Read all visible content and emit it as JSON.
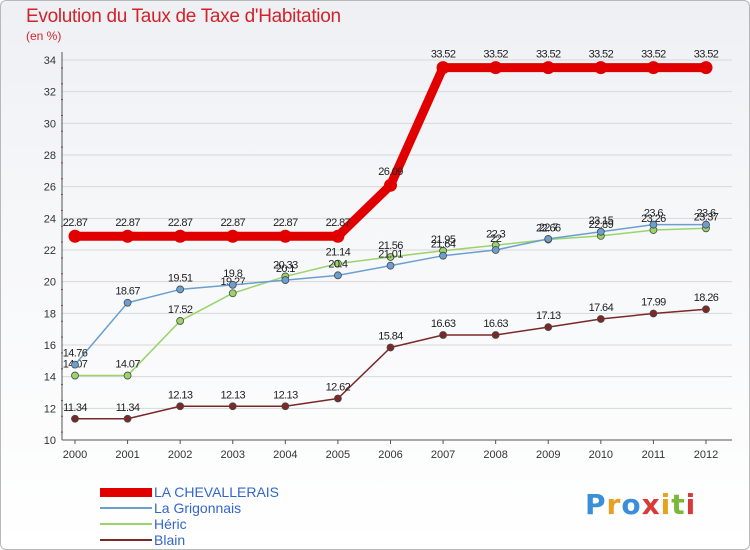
{
  "header": {
    "title": "Evolution du Taux de Taxe d'Habitation",
    "subtitle": "(en %)"
  },
  "logo": {
    "text": "Proxiti"
  },
  "chart_data": {
    "type": "line",
    "title": "Evolution du Taux de Taxe d'Habitation",
    "ylabel": "(en %)",
    "xlabel": "",
    "x": [
      "2000",
      "2001",
      "2002",
      "2003",
      "2004",
      "2005",
      "2006",
      "2007",
      "2008",
      "2009",
      "2010",
      "2011",
      "2012"
    ],
    "ylim": [
      10,
      34
    ],
    "yticks": [
      10,
      12,
      14,
      16,
      18,
      20,
      22,
      24,
      26,
      28,
      30,
      32,
      34
    ],
    "grid": "horizontal",
    "legend_position": "bottom-left",
    "series": [
      {
        "name": "LA CHEVALLERAIS",
        "color": "#e00000",
        "values": [
          22.87,
          22.87,
          22.87,
          22.87,
          22.87,
          22.87,
          26.09,
          33.52,
          33.52,
          33.52,
          33.52,
          33.52,
          33.52
        ],
        "labels": [
          "22.87",
          "22.87",
          "22.87",
          "22.87",
          "22.87",
          "22.87",
          "26.09",
          "33.52",
          "33.52",
          "33.52",
          "33.52",
          "33.52",
          "33.52"
        ]
      },
      {
        "name": "La Grigonnais",
        "color": "#6a9fd0",
        "values": [
          14.76,
          18.67,
          19.51,
          19.8,
          20.1,
          20.4,
          21.01,
          21.64,
          22.0,
          22.7,
          23.15,
          23.6,
          23.6
        ],
        "labels": [
          "14.76",
          "18.67",
          "19.51",
          "19.8",
          "20.1",
          "20.4",
          "21.01",
          "21.64",
          "22",
          "22.7",
          "23.15",
          "23.6",
          "23.6"
        ]
      },
      {
        "name": "Héric",
        "color": "#9ad46a",
        "values": [
          14.07,
          14.07,
          17.52,
          19.27,
          20.33,
          21.14,
          21.56,
          21.95,
          22.3,
          22.66,
          22.89,
          23.26,
          23.37
        ],
        "labels": [
          "14.07",
          "14.07",
          "17.52",
          "19.27",
          "20.33",
          "21.14",
          "21.56",
          "21.95",
          "22.3",
          "22.66",
          "22.89",
          "23.26",
          "23.37"
        ]
      },
      {
        "name": "Blain",
        "color": "#7a2828",
        "values": [
          11.34,
          11.34,
          12.13,
          12.13,
          12.13,
          12.62,
          15.84,
          16.63,
          16.63,
          17.13,
          17.64,
          17.99,
          18.26
        ],
        "labels": [
          "11.34",
          "11.34",
          "12.13",
          "12.13",
          "12.13",
          "12.62",
          "15.84",
          "16.63",
          "16.63",
          "17.13",
          "17.64",
          "17.99",
          "18.26"
        ]
      }
    ]
  }
}
